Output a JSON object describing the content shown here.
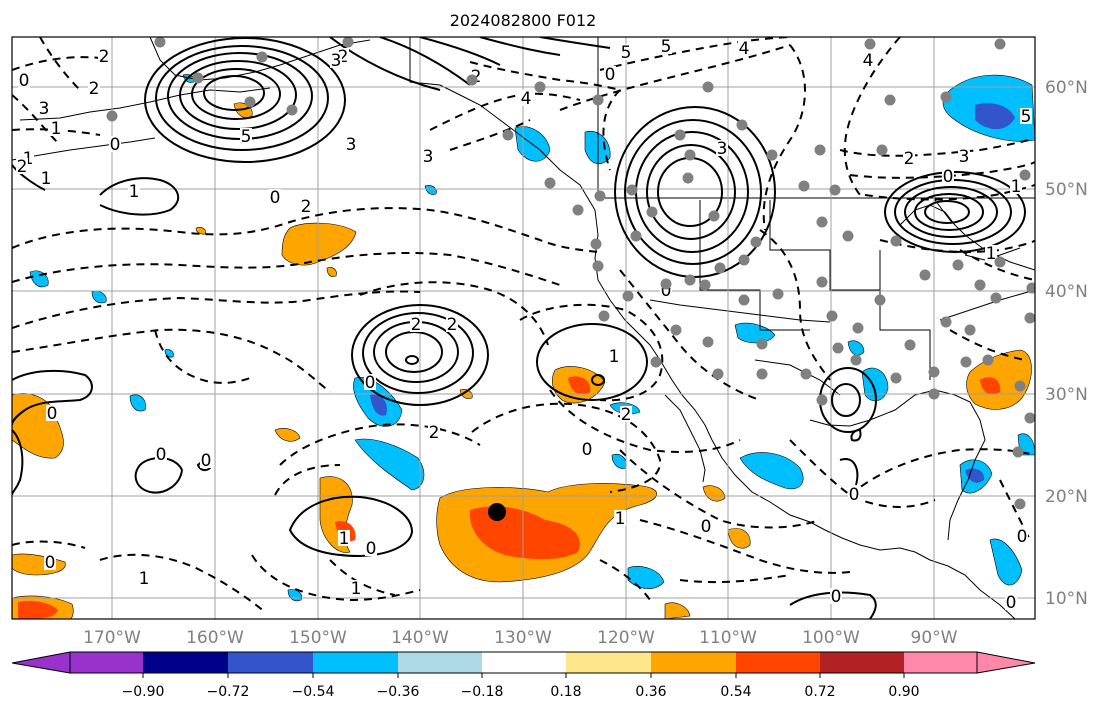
{
  "title": "2024082800 F012",
  "lon_labels": [
    "170°W",
    "160°W",
    "150°W",
    "140°W",
    "130°W",
    "120°W",
    "110°W",
    "100°W",
    "90°W"
  ],
  "lat_labels": [
    "60°N",
    "50°N",
    "40°N",
    "30°N",
    "20°N",
    "10°N"
  ],
  "colorbar": {
    "colors": [
      "#9932cc",
      "#00008b",
      "#3355cc",
      "#00bfff",
      "#add8e6",
      "#ffffff",
      "#ffe68a",
      "#ffa500",
      "#ff4500",
      "#b22222",
      "#ff88aa"
    ],
    "tick_labels": [
      "−0.90",
      "−0.72",
      "−0.54",
      "−0.36",
      "−0.18",
      "0.18",
      "0.36",
      "0.54",
      "0.72",
      "0.90"
    ]
  },
  "contour_labels": [
    "2",
    "5",
    "0",
    "3",
    "1",
    "5",
    "3",
    "1",
    "2",
    "4",
    "0",
    "3",
    "5",
    "4",
    "0",
    "2",
    "1",
    "0",
    "2",
    "3",
    "5",
    "2",
    "3",
    "1",
    "4",
    "2",
    "0",
    "2",
    "3",
    "1",
    "2",
    "2",
    "1",
    "1",
    "0",
    "0",
    "2",
    "0",
    "0",
    "0",
    "0",
    "1",
    "0",
    "1",
    "1",
    "0",
    "0",
    "0",
    "0",
    "2",
    "0",
    "1",
    "0"
  ],
  "colors": {
    "contour": "#000000",
    "coast": "#000000",
    "grid": "#a0a0a0",
    "station": "#808080",
    "storm": "#000000"
  }
}
